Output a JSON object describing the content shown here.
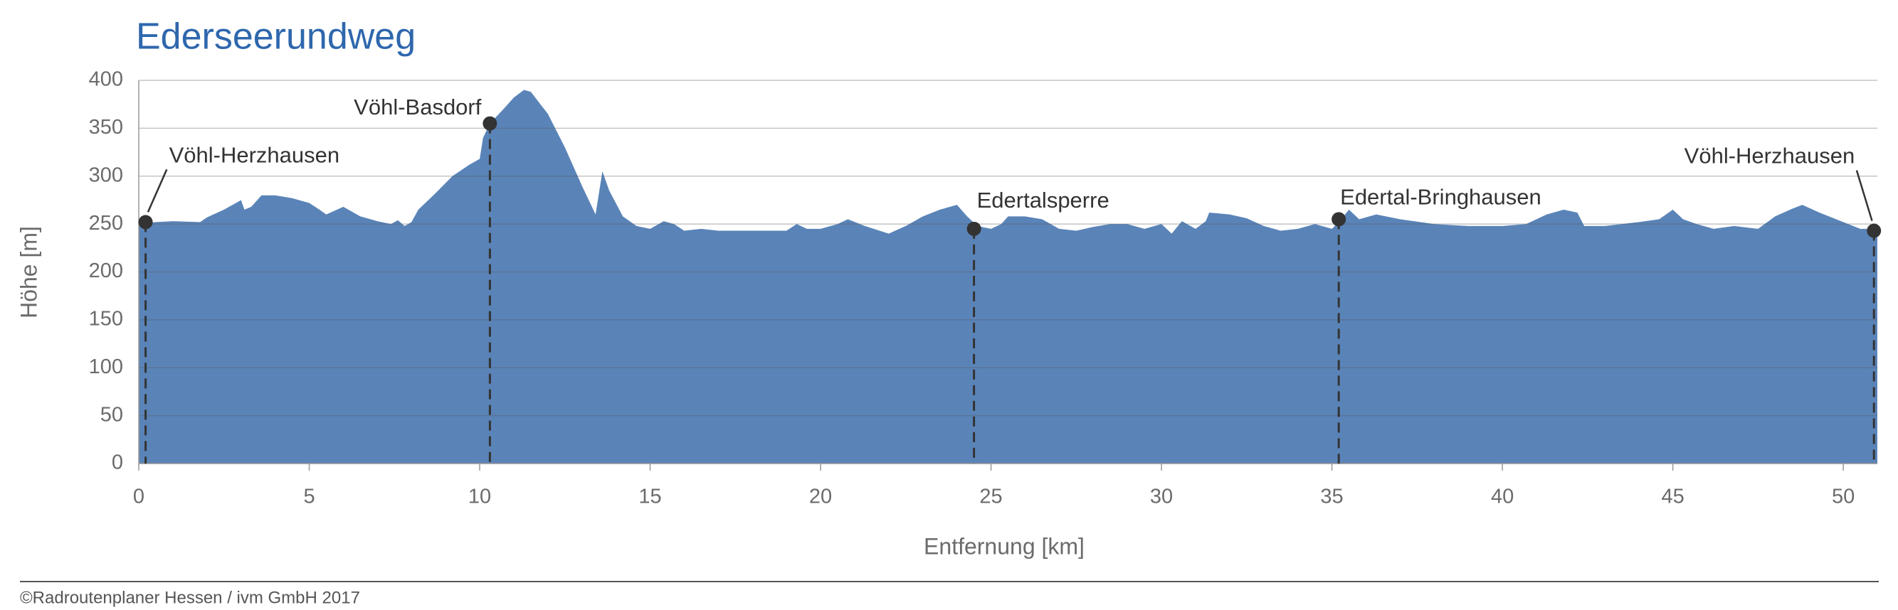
{
  "chart_data": {
    "type": "area",
    "title": "Ederseerundweg",
    "xlabel": "Entfernung [km]",
    "ylabel": "Höhe [m]",
    "footer": "©Radroutenplaner Hessen / ivm GmbH 2017",
    "color": "#5a84b8",
    "grid": true,
    "xlim": [
      0,
      51
    ],
    "xticks": [
      0,
      5,
      10,
      15,
      20,
      25,
      30,
      35,
      40,
      45,
      50
    ],
    "ylim": [
      0,
      400
    ],
    "yticks": [
      0,
      50,
      100,
      150,
      200,
      250,
      300,
      350,
      400
    ],
    "x": [
      0,
      0.5,
      1,
      1.8,
      2,
      2.5,
      3,
      3.1,
      3.3,
      3.6,
      4,
      4.5,
      5,
      5.3,
      5.5,
      6,
      6.5,
      7,
      7.4,
      7.6,
      7.8,
      8,
      8.2,
      8.7,
      9.2,
      9.7,
      10,
      10.1,
      10.3,
      10.7,
      11,
      11.3,
      11.5,
      12,
      12.5,
      13,
      13.4,
      13.6,
      13.8,
      14.2,
      14.6,
      15,
      15.4,
      15.7,
      16,
      16.5,
      17,
      18,
      19,
      19.3,
      19.6,
      20,
      20.5,
      20.8,
      21.3,
      22,
      22.5,
      23,
      23.5,
      24,
      24.3,
      24.6,
      25,
      25.3,
      25.5,
      26,
      26.5,
      27,
      27.5,
      28,
      28.5,
      29,
      29.5,
      30,
      30.3,
      30.6,
      31,
      31.3,
      31.4,
      32,
      32.5,
      33,
      33.5,
      34,
      34.5,
      35,
      35.2,
      35.5,
      35.8,
      36.3,
      37,
      38,
      39,
      40,
      40.7,
      41.3,
      41.8,
      42.2,
      42.4,
      43,
      44,
      44.6,
      45,
      45.3,
      45.7,
      46.2,
      46.8,
      47.5,
      48,
      48.5,
      48.8,
      49.3,
      50,
      50.5,
      51
    ],
    "values": [
      250,
      252,
      253,
      252,
      257,
      265,
      275,
      265,
      268,
      280,
      280,
      277,
      272,
      265,
      260,
      268,
      258,
      253,
      250,
      254,
      248,
      252,
      265,
      282,
      300,
      312,
      318,
      340,
      355,
      370,
      382,
      390,
      388,
      365,
      330,
      290,
      260,
      305,
      285,
      258,
      248,
      245,
      253,
      250,
      243,
      245,
      243,
      243,
      243,
      250,
      245,
      245,
      250,
      255,
      248,
      240,
      248,
      258,
      265,
      270,
      258,
      248,
      245,
      250,
      258,
      258,
      255,
      245,
      243,
      247,
      250,
      250,
      245,
      250,
      240,
      253,
      245,
      253,
      262,
      260,
      256,
      248,
      243,
      245,
      250,
      245,
      252,
      265,
      255,
      260,
      255,
      250,
      248,
      248,
      250,
      260,
      265,
      262,
      248,
      248,
      252,
      255,
      265,
      255,
      250,
      245,
      248,
      245,
      258,
      266,
      270,
      262,
      252,
      245,
      245
    ],
    "annotations": [
      {
        "label": "Vöhl-Herzhausen",
        "x": 0.2,
        "y": 252
      },
      {
        "label": "Vöhl-Basdorf",
        "x": 10.3,
        "y": 355
      },
      {
        "label": "Edertalsperre",
        "x": 24.5,
        "y": 245
      },
      {
        "label": "Edertal-Bringhausen",
        "x": 35.2,
        "y": 255
      },
      {
        "label": "Vöhl-Herzhausen",
        "x": 50.9,
        "y": 243
      }
    ]
  }
}
